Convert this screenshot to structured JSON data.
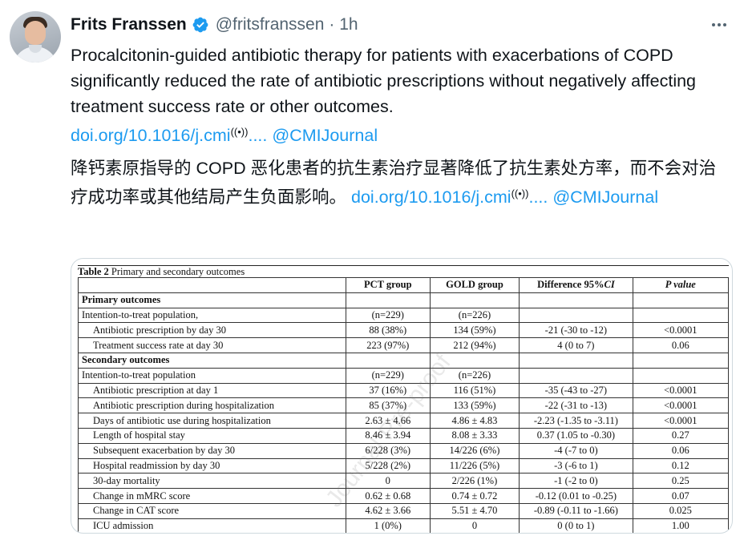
{
  "tweet": {
    "author_name": "Frits Franssen",
    "author_handle": "@fritsfranssen",
    "time_ago": "· 1h",
    "text_en": "Procalcitonin-guided antibiotic therapy for patients with exacerbations of COPD significantly  reduced the rate of antibiotic prescriptions without negatively affecting treatment success rate or other outcomes.",
    "link_1": "doi.org/10.1016/j.cmi",
    "link_1_suffix": "....",
    "mention_1": "@CMIJournal",
    "text_zh": "降钙素原指导的 COPD 恶化患者的抗生素治疗显著降低了抗生素处方率，而不会对治疗成功率或其他结局产生负面影响。",
    "link_2": "doi.org/10.1016/j.cmi",
    "link_2_suffix": "....",
    "mention_2": "@CMIJournal",
    "live_icon_glyph": "((•))",
    "verified_badge_color": "#1d9bf0",
    "link_color": "#1d9bf0"
  },
  "table": {
    "caption_label": "Table 2",
    "caption_text": " Primary and secondary outcomes",
    "headers": [
      "",
      "PCT group",
      "GOLD group",
      "Difference 95%",
      "P value"
    ],
    "header_ci": "CI",
    "rows": [
      {
        "type": "section",
        "cells": [
          "Primary outcomes",
          "",
          "",
          "",
          ""
        ]
      },
      {
        "type": "plain",
        "cells": [
          "Intention-to-treat population,",
          "(n=229)",
          "(n=226)",
          "",
          ""
        ]
      },
      {
        "type": "indent",
        "cells": [
          "Antibiotic prescription by day 30",
          "88 (38%)",
          "134 (59%)",
          "-21 (-30 to -12)",
          "<0.0001"
        ]
      },
      {
        "type": "indent",
        "cells": [
          "Treatment success rate at day 30",
          "223 (97%)",
          "212 (94%)",
          "4 (0 to 7)",
          "0.06"
        ]
      },
      {
        "type": "section",
        "cells": [
          "Secondary outcomes",
          "",
          "",
          "",
          ""
        ]
      },
      {
        "type": "plain",
        "cells": [
          "Intention-to-treat population",
          "(n=229)",
          "(n=226)",
          "",
          ""
        ]
      },
      {
        "type": "indent",
        "cells": [
          "Antibiotic prescription at day 1",
          "37 (16%)",
          "116 (51%)",
          "-35 (-43 to -27)",
          "<0.0001"
        ]
      },
      {
        "type": "indent",
        "cells": [
          "Antibiotic prescription during hospitalization",
          "85 (37%)",
          "133 (59%)",
          "-22 (-31 to -13)",
          "<0.0001"
        ]
      },
      {
        "type": "indent",
        "cells": [
          "Days of antibiotic use during hospitalization",
          "2.63 ± 4.66",
          "4.86 ± 4.83",
          "-2.23 (-1.35 to -3.11)",
          "<0.0001"
        ]
      },
      {
        "type": "indent",
        "cells": [
          "Length of hospital stay",
          "8.46 ± 3.94",
          "8.08 ± 3.33",
          "0.37 (1.05 to -0.30)",
          "0.27"
        ]
      },
      {
        "type": "indent",
        "cells": [
          "Subsequent exacerbation by day 30",
          "6/228 (3%)",
          "14/226 (6%)",
          "-4 (-7 to 0)",
          "0.06"
        ]
      },
      {
        "type": "indent",
        "cells": [
          "Hospital readmission by day 30",
          "5/228 (2%)",
          "11/226 (5%)",
          "-3 (-6 to 1)",
          "0.12"
        ]
      },
      {
        "type": "indent",
        "cells": [
          "30-day mortality",
          "0",
          "2/226 (1%)",
          "-1 (-2 to 0)",
          "0.25"
        ]
      },
      {
        "type": "indent",
        "cells": [
          "Change in mMRC score",
          "0.62 ± 0.68",
          "0.74 ± 0.72",
          "-0.12 (0.01 to -0.25)",
          "0.07"
        ]
      },
      {
        "type": "indent",
        "cells": [
          "Change in CAT score",
          "4.62 ± 3.66",
          "5.51 ± 4.70",
          "-0.89 (-0.11 to -1.66)",
          "0.025"
        ]
      },
      {
        "type": "indent",
        "cells": [
          "ICU admission",
          "1 (0%)",
          "0",
          "0 (0 to 1)",
          "1.00"
        ]
      }
    ],
    "watermark": "Journal Pre-proof"
  }
}
